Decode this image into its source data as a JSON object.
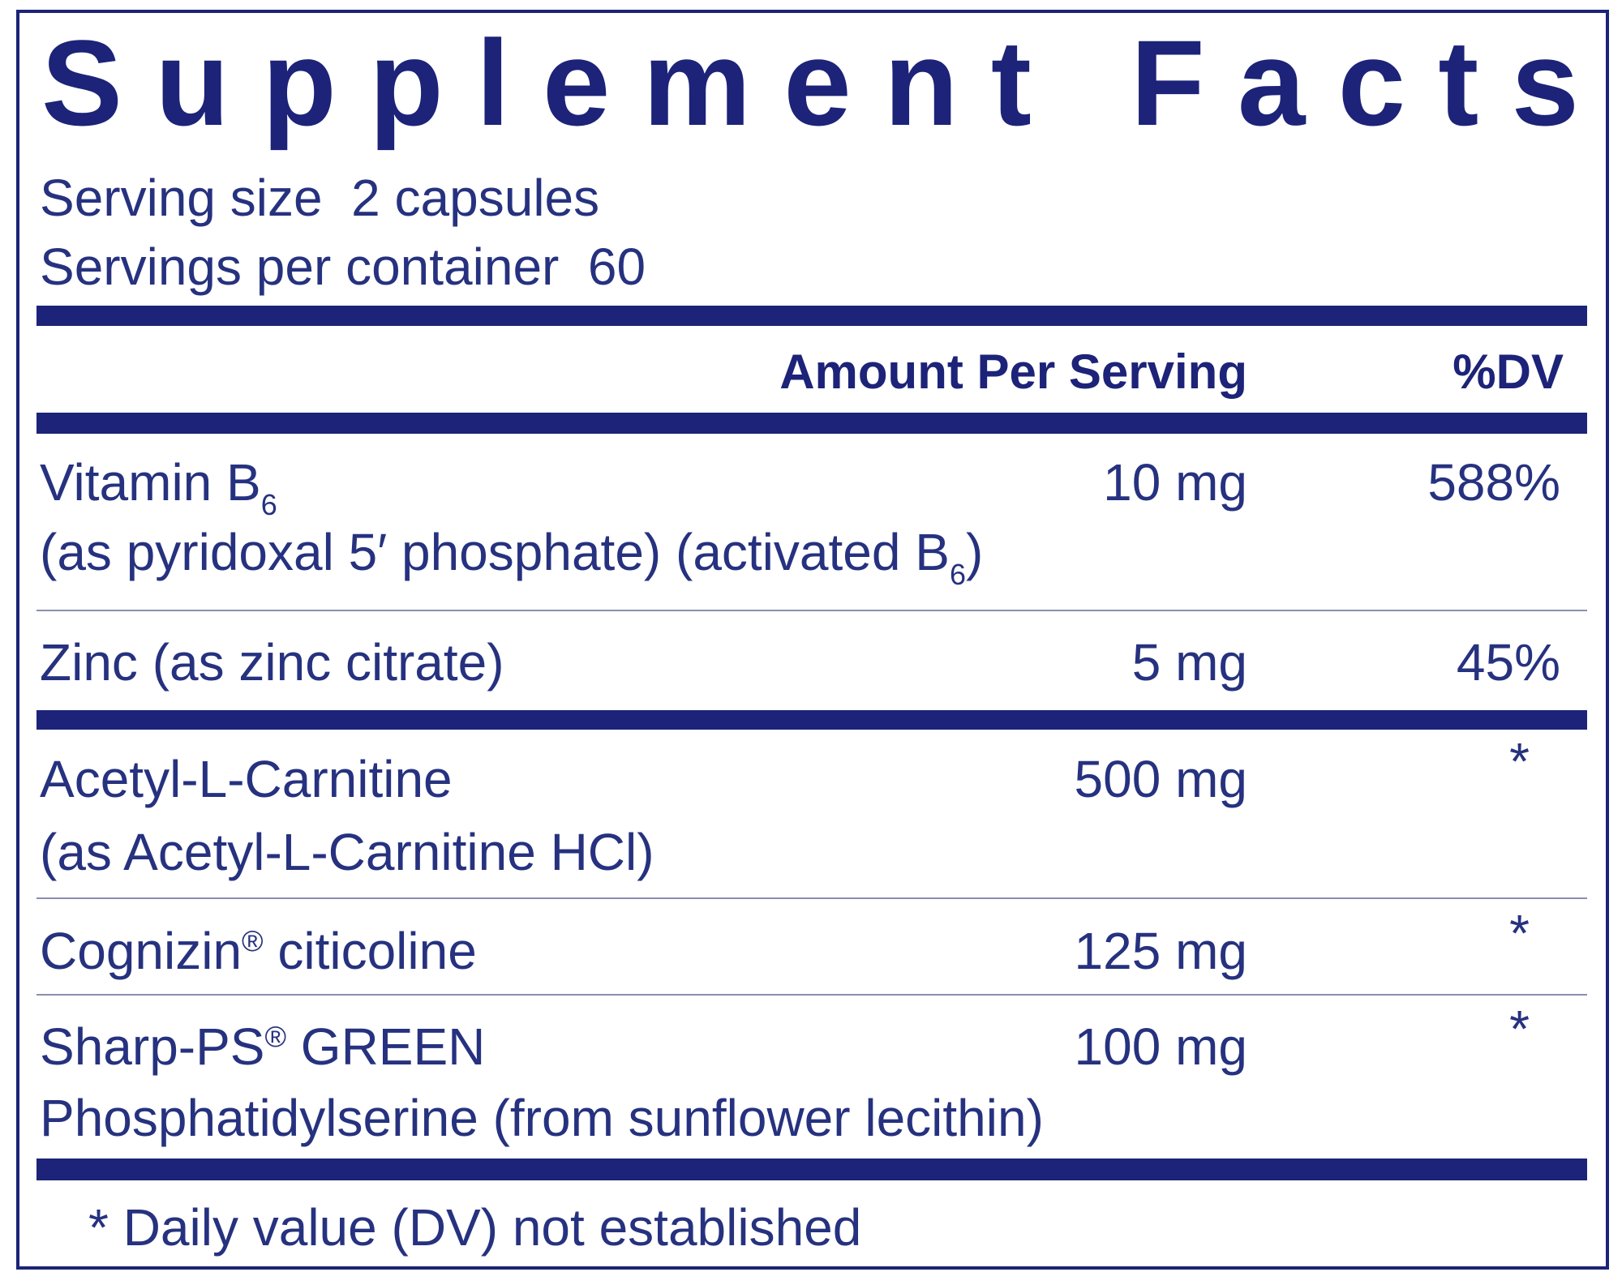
{
  "title": "Supplement Facts",
  "serving_size": "Serving size  2 capsules",
  "servings_per_container": "Servings per container  60",
  "header": {
    "amount": "Amount Per Serving",
    "dv": "%DV"
  },
  "rows": [
    {
      "lines": [
        [
          {
            "text": "Vitamin B"
          },
          {
            "sub": "6"
          }
        ],
        [
          {
            "text": "(as pyridoxal 5′ phosphate) (activated B"
          },
          {
            "sub": "6"
          },
          {
            "text": ")"
          }
        ]
      ],
      "amount": "10 mg",
      "dv": "588%"
    },
    {
      "lines": [
        [
          {
            "text": "Zinc (as zinc citrate)"
          }
        ]
      ],
      "amount": "5 mg",
      "dv": "45%"
    },
    {
      "lines": [
        [
          {
            "text": "Acetyl-L-Carnitine"
          }
        ],
        [
          {
            "text": "(as Acetyl-L-Carnitine HCl)"
          }
        ]
      ],
      "amount": "500 mg",
      "dv": "*"
    },
    {
      "lines": [
        [
          {
            "text": "Cognizin"
          },
          {
            "sup": "®"
          },
          {
            "text": " citicoline"
          }
        ]
      ],
      "amount": "125 mg",
      "dv": "*"
    },
    {
      "lines": [
        [
          {
            "text": "Sharp-PS"
          },
          {
            "sup": "®"
          },
          {
            "text": " GREEN"
          }
        ],
        [
          {
            "text": "Phosphatidylserine (from sunflower lecithin)"
          }
        ]
      ],
      "amount": "100 mg",
      "dv": "*"
    }
  ],
  "footnote": "* Daily value (DV) not established"
}
